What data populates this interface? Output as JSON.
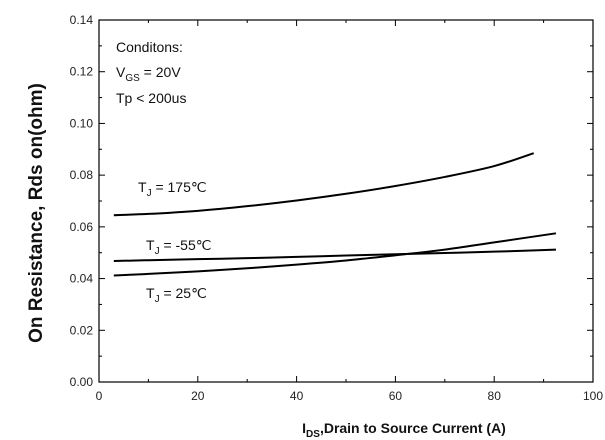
{
  "chart_data": {
    "type": "line",
    "title": "",
    "xlabel": {
      "main": "I",
      "sub": "DS",
      "rest": ",Drain to Source Current (A)"
    },
    "ylabel": "On Resistance, Rds on(ohm)",
    "xlim": [
      0,
      100
    ],
    "ylim": [
      0,
      0.14
    ],
    "x_ticks": [
      "0",
      "20",
      "40",
      "60",
      "80",
      "100"
    ],
    "y_ticks": [
      "0.00",
      "0.02",
      "0.04",
      "0.06",
      "0.08",
      "0.10",
      "0.12",
      "0.14"
    ],
    "grid": false,
    "legend": "none",
    "series": [
      {
        "name": "TJ = 175℃",
        "x": [
          3,
          10,
          20,
          30,
          40,
          50,
          60,
          70,
          80,
          88
        ],
        "y": [
          0.0645,
          0.065,
          0.0662,
          0.068,
          0.0702,
          0.0728,
          0.0758,
          0.0793,
          0.0835,
          0.0885
        ]
      },
      {
        "name": "TJ = -55℃",
        "x": [
          3,
          10,
          20,
          30,
          40,
          50,
          60,
          70,
          80,
          92.5
        ],
        "y": [
          0.0468,
          0.0471,
          0.0475,
          0.0479,
          0.0484,
          0.0489,
          0.0494,
          0.0499,
          0.0504,
          0.0512
        ]
      },
      {
        "name": "TJ = 25℃",
        "x": [
          3,
          10,
          20,
          30,
          40,
          50,
          60,
          70,
          80,
          92.5
        ],
        "y": [
          0.0412,
          0.0418,
          0.0428,
          0.044,
          0.0454,
          0.047,
          0.049,
          0.0512,
          0.054,
          0.0575
        ]
      }
    ],
    "annotations": {
      "conditions_title": "Conditons:",
      "vgs": {
        "main": "V",
        "sub": "GS",
        "rest": " = 20V"
      },
      "tp": "Tp < 200us",
      "t175": {
        "main": "T",
        "sub": "J",
        "rest": " = 175℃"
      },
      "tm55": {
        "main": "T",
        "sub": "J",
        "rest": " = -55℃"
      },
      "t25": {
        "main": "T",
        "sub": "J",
        "rest": " = 25℃"
      }
    },
    "colors": {
      "line": "#000000",
      "axis": "#000000"
    }
  }
}
